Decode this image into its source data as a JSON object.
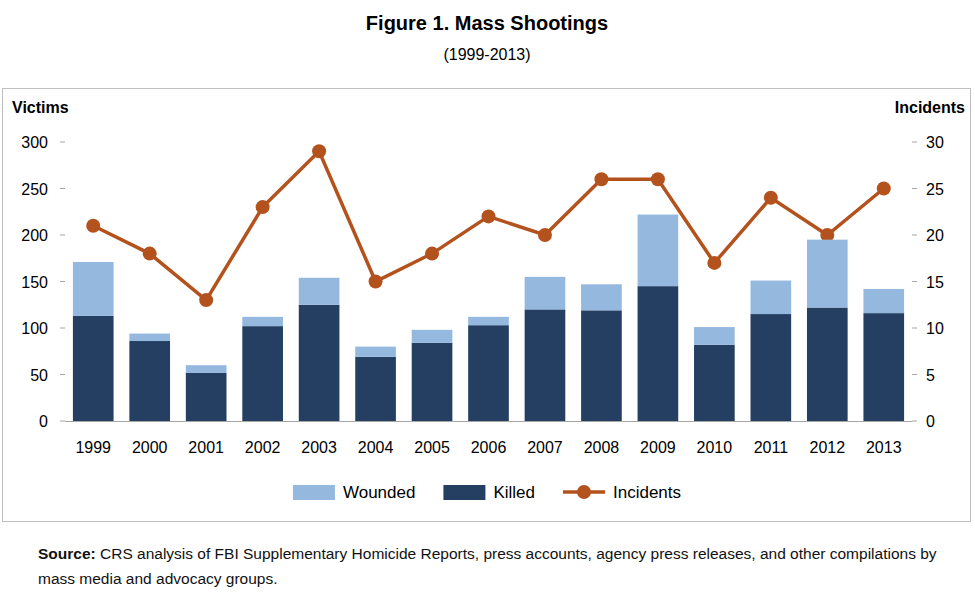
{
  "chart_data": {
    "type": "bar",
    "title": "Figure 1. Mass Shootings",
    "subtitle": "(1999-2013)",
    "y_label": "Victims",
    "y2_label": "Incidents",
    "source_label": "Source:",
    "source": "CRS analysis of FBI Supplementary Homicide Reports, press accounts, agency press releases, and other compilations by mass media and advocacy groups.",
    "categories": [
      "1999",
      "2000",
      "2001",
      "2002",
      "2003",
      "2004",
      "2005",
      "2006",
      "2007",
      "2008",
      "2009",
      "2010",
      "2011",
      "2012",
      "2013"
    ],
    "stacked": true,
    "grid": false,
    "legend": "bottom",
    "ylim": [
      0,
      300
    ],
    "yticks": [
      0,
      50,
      100,
      150,
      200,
      250,
      300
    ],
    "y2lim": [
      0,
      30
    ],
    "y2ticks": [
      0,
      5,
      10,
      15,
      20,
      25,
      30
    ],
    "series": [
      {
        "name": "Wounded",
        "type": "bar",
        "color": "#95b8de",
        "values": [
          58,
          8,
          8,
          10,
          29,
          11,
          14,
          9,
          35,
          28,
          77,
          19,
          36,
          73,
          26
        ]
      },
      {
        "name": "Killed",
        "type": "bar",
        "color": "#243f62",
        "values": [
          113,
          86,
          52,
          102,
          125,
          69,
          84,
          103,
          120,
          119,
          145,
          82,
          115,
          122,
          116
        ]
      },
      {
        "name": "Incidents",
        "type": "line",
        "axis": "y2",
        "color": "#b4521e",
        "marker": "circle",
        "line_style": "solid",
        "values": [
          21,
          18,
          13,
          23,
          29,
          15,
          18,
          22,
          20,
          26,
          26,
          17,
          24,
          20,
          25
        ]
      }
    ]
  }
}
